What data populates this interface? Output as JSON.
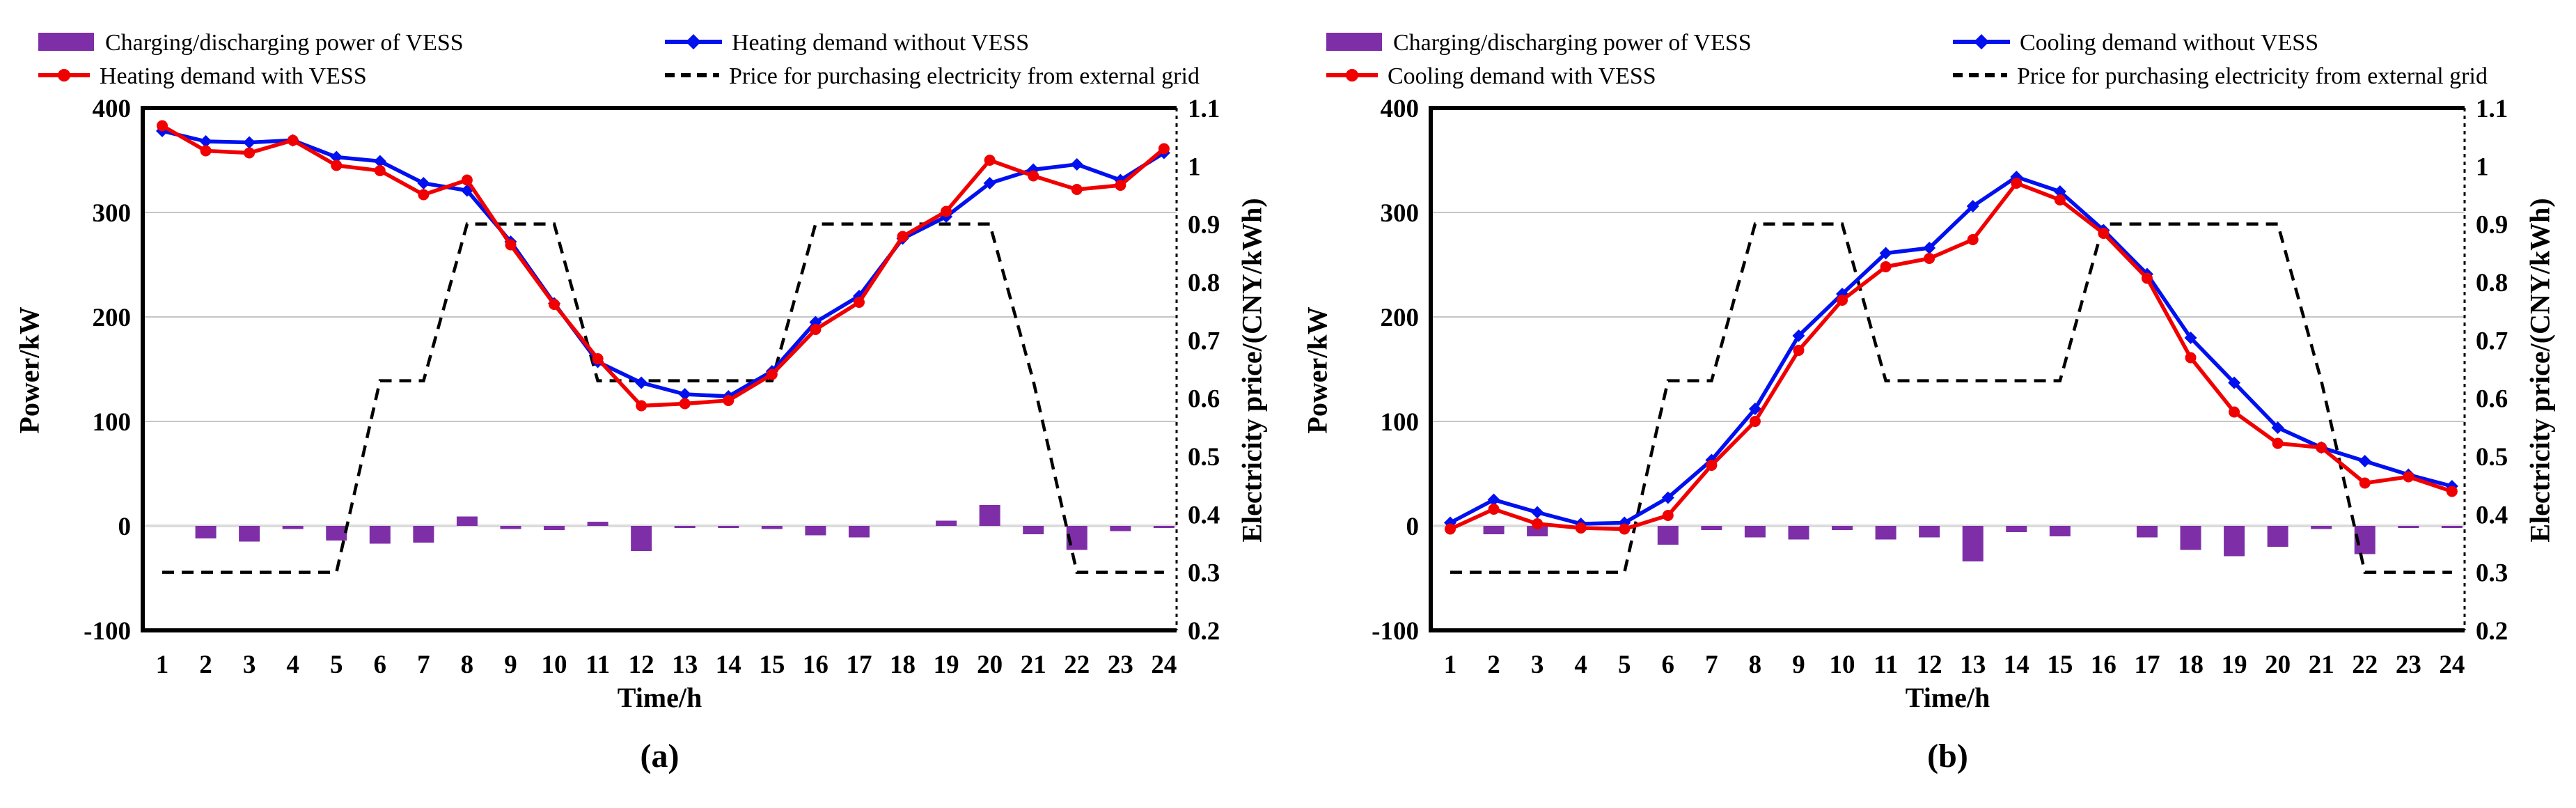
{
  "figure": {
    "background": "#ffffff",
    "grid_color": "#c6c6c6",
    "zero_line_color": "#dcdcdc",
    "frame_color": "#000000"
  },
  "chart_data": [
    {
      "panel_label": "(a)",
      "type": "bar+line combo, dual y-axis",
      "x": {
        "title": "Time/h",
        "categories": [
          1,
          2,
          3,
          4,
          5,
          6,
          7,
          8,
          9,
          10,
          11,
          12,
          13,
          14,
          15,
          16,
          17,
          18,
          19,
          20,
          21,
          22,
          23,
          24
        ]
      },
      "left_axis": {
        "title": "Power/kW",
        "min": -100,
        "max": 400,
        "ticks": [
          400,
          300,
          200,
          100,
          0,
          -100
        ]
      },
      "right_axis": {
        "title": "Electricity price/(CNY/kWh)",
        "min": 0.2,
        "max": 1.1,
        "ticks": [
          1.1,
          1,
          0.9,
          0.8,
          0.7,
          0.6,
          0.5,
          0.4,
          0.3,
          0.2
        ]
      },
      "legend": [
        {
          "label": "Charging/discharging power of VESS",
          "color": "#7e2fa8",
          "swatch": "box"
        },
        {
          "label": "Heating demand without VESS",
          "color": "#0010ee",
          "swatch": "line-diamond"
        },
        {
          "label": "Heating demand with VESS",
          "color": "#f00000",
          "swatch": "line-circle"
        },
        {
          "label": "Price for purchasing  electricity  from external grid",
          "color": "#000000",
          "swatch": "dashed"
        }
      ],
      "series": [
        {
          "name": "Charging/discharging power of VESS",
          "type": "bar",
          "axis": "left",
          "color": "#7e2fa8",
          "values": [
            0,
            -12,
            -15,
            -3,
            -14,
            -17,
            -16,
            9,
            -3,
            -4,
            4,
            -24,
            -2,
            -2,
            -3,
            -9,
            -11,
            0,
            5,
            20,
            -8,
            -23,
            -5,
            -2
          ]
        },
        {
          "name": "Heating demand without VESS",
          "type": "line",
          "axis": "left",
          "color": "#0010ee",
          "marker": "diamond",
          "values": [
            378,
            368,
            367,
            369,
            353,
            349,
            328,
            321,
            272,
            213,
            157,
            137,
            126,
            124,
            148,
            195,
            220,
            275,
            296,
            328,
            341,
            346,
            331,
            357
          ]
        },
        {
          "name": "Heating demand with VESS",
          "type": "line",
          "axis": "left",
          "color": "#f00000",
          "marker": "circle",
          "values": [
            383,
            359,
            357,
            369,
            345,
            340,
            317,
            331,
            269,
            212,
            160,
            115,
            117,
            120,
            145,
            188,
            214,
            277,
            301,
            350,
            335,
            322,
            326,
            361
          ]
        },
        {
          "name": "Price for purchasing electricity from external grid",
          "type": "dashed-line",
          "axis": "right",
          "color": "#000000",
          "values": [
            0.3,
            0.3,
            0.3,
            0.3,
            0.3,
            0.63,
            0.63,
            0.9,
            0.9,
            0.9,
            0.63,
            0.63,
            0.63,
            0.63,
            0.63,
            0.9,
            0.9,
            0.9,
            0.9,
            0.9,
            0.63,
            0.3,
            0.3,
            0.3
          ]
        }
      ]
    },
    {
      "panel_label": "(b)",
      "type": "bar+line combo, dual y-axis",
      "x": {
        "title": "Time/h",
        "categories": [
          1,
          2,
          3,
          4,
          5,
          6,
          7,
          8,
          9,
          10,
          11,
          12,
          13,
          14,
          15,
          16,
          17,
          18,
          19,
          20,
          21,
          22,
          23,
          24
        ]
      },
      "left_axis": {
        "title": "Power/kW",
        "min": -100,
        "max": 400,
        "ticks": [
          400,
          300,
          200,
          100,
          0,
          -100
        ]
      },
      "right_axis": {
        "title": "Electricity price/(CNY/kWh)",
        "min": 0.2,
        "max": 1.1,
        "ticks": [
          1.1,
          1,
          0.9,
          0.8,
          0.7,
          0.6,
          0.5,
          0.4,
          0.3,
          0.2
        ]
      },
      "legend": [
        {
          "label": "Charging/discharging power of VESS",
          "color": "#7e2fa8",
          "swatch": "box"
        },
        {
          "label": "Cooling demand without VESS",
          "color": "#0010ee",
          "swatch": "line-diamond"
        },
        {
          "label": "Cooling demand with VESS",
          "color": "#f00000",
          "swatch": "line-circle"
        },
        {
          "label": "Price for purchasing  electricity  from external grid",
          "color": "#000000",
          "swatch": "dashed"
        }
      ],
      "series": [
        {
          "name": "Charging/discharging power of VESS",
          "type": "bar",
          "axis": "left",
          "color": "#7e2fa8",
          "values": [
            0,
            -8,
            -10,
            0,
            0,
            -18,
            -4,
            -11,
            -13,
            -4,
            -13,
            -11,
            -34,
            -6,
            -10,
            0,
            -11,
            -23,
            -29,
            -20,
            -3,
            -27,
            -2,
            -2
          ]
        },
        {
          "name": "Cooling demand without VESS",
          "type": "line",
          "axis": "left",
          "color": "#0010ee",
          "marker": "diamond",
          "values": [
            3,
            25,
            13,
            2,
            3,
            27,
            63,
            112,
            182,
            222,
            261,
            266,
            306,
            334,
            320,
            283,
            241,
            180,
            137,
            94,
            75,
            62,
            49,
            38
          ]
        },
        {
          "name": "Cooling demand with VESS",
          "type": "line",
          "axis": "left",
          "color": "#f00000",
          "marker": "circle",
          "values": [
            -3,
            16,
            2,
            -2,
            -3,
            10,
            58,
            100,
            168,
            216,
            248,
            256,
            274,
            328,
            312,
            280,
            237,
            161,
            109,
            79,
            75,
            41,
            47,
            33
          ]
        },
        {
          "name": "Price for purchasing electricity from external grid",
          "type": "dashed-line",
          "axis": "right",
          "color": "#000000",
          "values": [
            0.3,
            0.3,
            0.3,
            0.3,
            0.3,
            0.63,
            0.63,
            0.9,
            0.9,
            0.9,
            0.63,
            0.63,
            0.63,
            0.63,
            0.63,
            0.9,
            0.9,
            0.9,
            0.9,
            0.9,
            0.63,
            0.3,
            0.3,
            0.3
          ]
        }
      ]
    }
  ]
}
